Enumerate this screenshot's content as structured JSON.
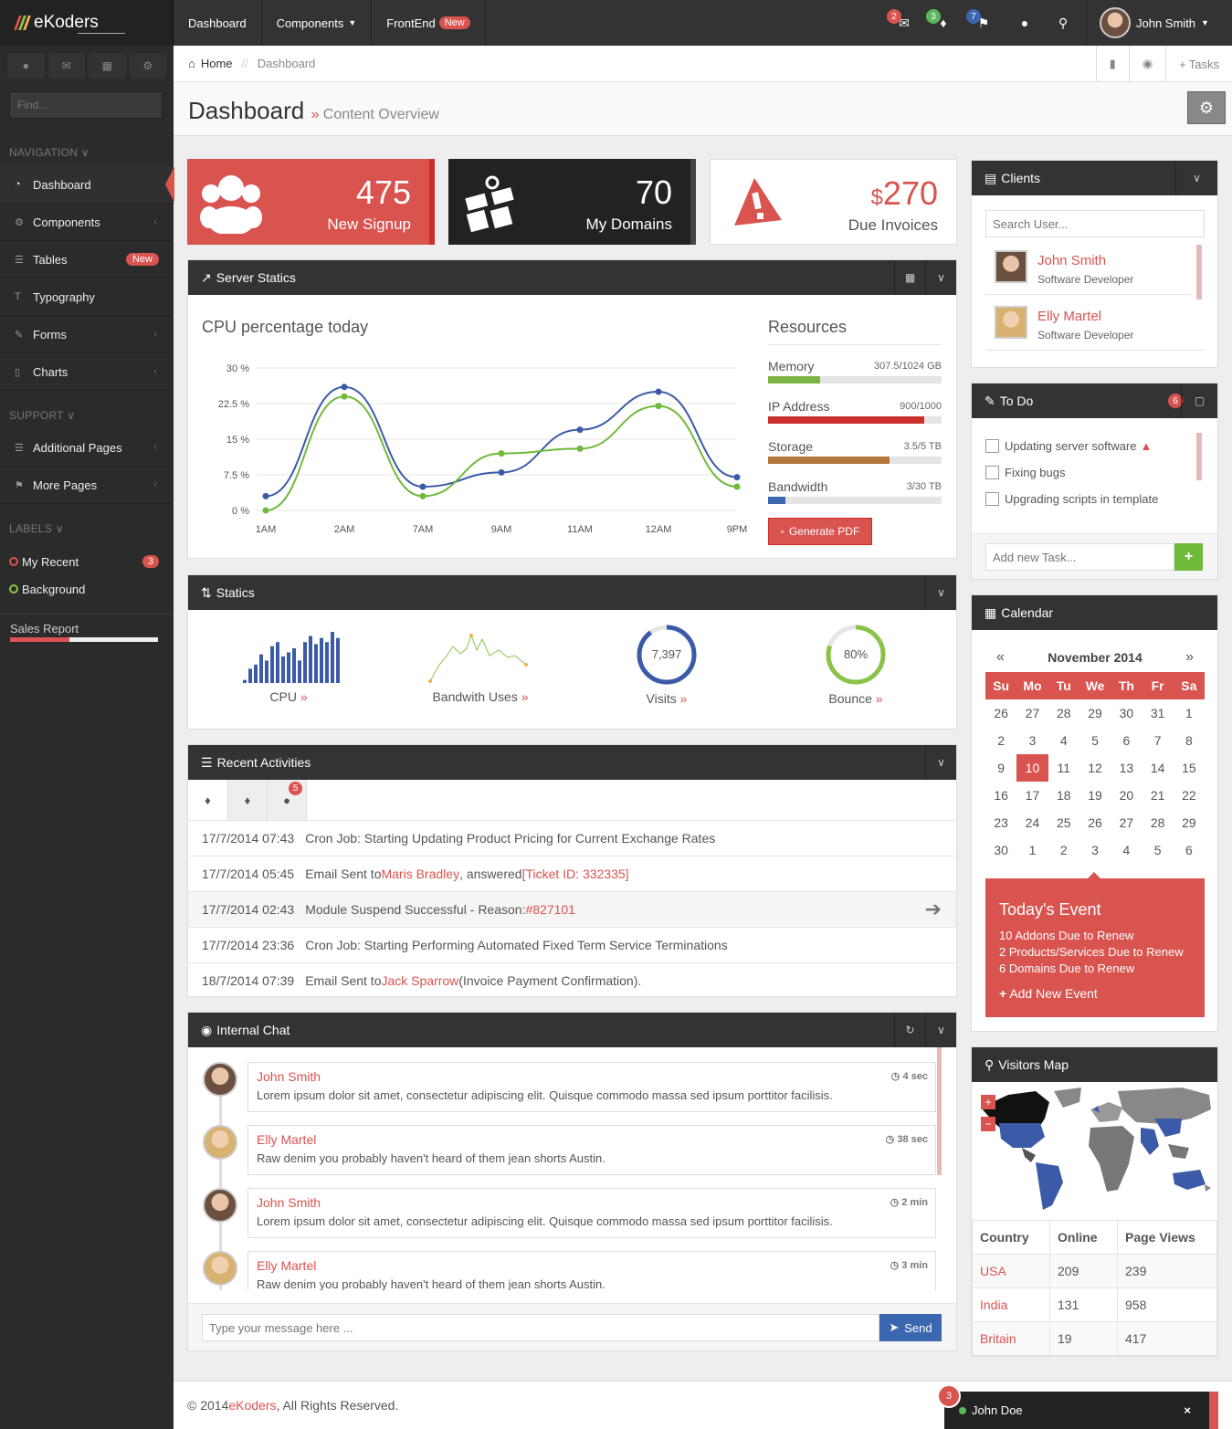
{
  "brand": "eKoders",
  "sidebar": {
    "find_placeholder": "Find...",
    "nav_head": "NAVIGATION",
    "items": [
      {
        "label": "Dashboard"
      },
      {
        "label": "Components"
      },
      {
        "label": "Tables",
        "badge": "New"
      },
      {
        "label": "Typography"
      },
      {
        "label": "Forms"
      },
      {
        "label": "Charts"
      }
    ],
    "support_head": "SUPPORT",
    "support_items": [
      {
        "label": "Additional Pages"
      },
      {
        "label": "More Pages"
      }
    ],
    "labels_head": "LABELS",
    "labels": [
      {
        "label": "My Recent",
        "badge": "3",
        "color": "#d9534f"
      },
      {
        "label": "Background",
        "color": "#8bc34a"
      }
    ],
    "sales_report": "Sales Report"
  },
  "topbar": {
    "nav": [
      {
        "label": "Dashboard"
      },
      {
        "label": "Components"
      },
      {
        "label": "FrontEnd",
        "badge": "New"
      }
    ],
    "mail_count": "2",
    "alert_count": "3",
    "flag_count": "7",
    "user": "John Smith"
  },
  "breadcrumb": {
    "home": "Home",
    "current": "Dashboard",
    "tasks": "Tasks"
  },
  "page": {
    "title": "Dashboard",
    "subtitle": "Content Overview"
  },
  "stats": [
    {
      "value": "475",
      "label": "New Signup"
    },
    {
      "value": "70",
      "label": "My Domains"
    },
    {
      "currency": "$",
      "value": "270",
      "label": "Due Invoices"
    }
  ],
  "server_panel": {
    "title": "Server Statics",
    "chart_title": "CPU percentage today",
    "resources_title": "Resources",
    "pdf_button": "Generate PDF"
  },
  "resources": [
    {
      "name": "Memory",
      "value": "307.5/1024 GB",
      "fill": 0.3,
      "color": "#7cb342"
    },
    {
      "name": "IP Address",
      "value": "900/1000",
      "fill": 0.9,
      "color": "#c9302c"
    },
    {
      "name": "Storage",
      "value": "3.5/5 TB",
      "fill": 0.7,
      "color": "#b5763a"
    },
    {
      "name": "Bandwidth",
      "value": "3/30 TB",
      "fill": 0.1,
      "color": "#3b66b0"
    }
  ],
  "chart_data": {
    "type": "line",
    "title": "CPU percentage today",
    "categories": [
      "1AM",
      "2AM",
      "7AM",
      "9AM",
      "11AM",
      "12AM",
      "9PM"
    ],
    "ylim": [
      0,
      30
    ],
    "yticks": [
      "30 %",
      "22.5 %",
      "15 %",
      "7.5 %",
      "0 %"
    ],
    "series": [
      {
        "color": "#3b5ba9",
        "values": [
          3,
          26,
          5,
          8,
          17,
          25,
          7
        ]
      },
      {
        "color": "#6fb93b",
        "values": [
          0,
          24,
          3,
          12,
          13,
          22,
          5
        ]
      }
    ]
  },
  "statics": {
    "title": "Statics",
    "items": [
      {
        "label": "CPU"
      },
      {
        "label": "Bandwith Uses"
      },
      {
        "label": "Visits",
        "value": "7,397"
      },
      {
        "label": "Bounce",
        "value": "80%"
      }
    ],
    "cpu_bars": [
      3,
      14,
      18,
      28,
      22,
      36,
      40,
      26,
      30,
      34,
      22,
      40,
      46,
      38,
      44,
      40,
      50,
      44
    ],
    "bounce_percent": 80,
    "visits_fill": 0.9
  },
  "activities": {
    "title": "Recent Activities",
    "tab_badge": "5",
    "rows": [
      {
        "time": "17/7/2014 07:43",
        "text": "Cron Job: Starting Updating Product Pricing for Current Exchange Rates"
      },
      {
        "time": "17/7/2014 05:45",
        "pre": "Email Sent to ",
        "link1": "Maris Bradley",
        "mid": ", answered ",
        "link2": "[Ticket ID: 332335]"
      },
      {
        "time": "17/7/2014 02:43",
        "pre": "Module Suspend Successful - Reason: ",
        "link1": "#827101"
      },
      {
        "time": "17/7/2014 23:36",
        "text": "Cron Job: Starting Performing Automated Fixed Term Service Terminations"
      },
      {
        "time": "18/7/2014 07:39",
        "pre": "Email Sent to ",
        "link1": "Jack Sparrow",
        "post": " (Invoice Payment Confirmation)."
      }
    ]
  },
  "chat": {
    "title": "Internal Chat",
    "messages": [
      {
        "name": "John Smith",
        "time": "4 sec",
        "text": "Lorem ipsum dolor sit amet, consectetur adipiscing elit. Quisque commodo massa sed ipsum porttitor facilisis."
      },
      {
        "name": "Elly Martel",
        "time": "38 sec",
        "text": "Raw denim you probably haven't heard of them jean shorts Austin."
      },
      {
        "name": "John Smith",
        "time": "2 min",
        "text": "Lorem ipsum dolor sit amet, consectetur adipiscing elit. Quisque commodo massa sed ipsum porttitor facilisis."
      },
      {
        "name": "Elly Martel",
        "time": "3 min",
        "text": "Raw denim you probably haven't heard of them jean shorts Austin."
      }
    ],
    "placeholder": "Type your message here ...",
    "send": "Send"
  },
  "clients": {
    "title": "Clients",
    "search_placeholder": "Search User...",
    "list": [
      {
        "name": "John Smith",
        "role": "Software Developer"
      },
      {
        "name": "Elly Martel",
        "role": "Software Developer"
      }
    ]
  },
  "todo": {
    "title": "To Do",
    "count": "6",
    "items": [
      "Updating server software",
      "Fixing bugs",
      "Upgrading scripts in template"
    ],
    "placeholder": "Add new Task..."
  },
  "calendar": {
    "title": "Calendar",
    "month": "November 2014",
    "days": [
      "Su",
      "Mo",
      "Tu",
      "We",
      "Th",
      "Fr",
      "Sa"
    ],
    "weeks": [
      [
        "26",
        "27",
        "28",
        "29",
        "30",
        "31",
        "1"
      ],
      [
        "2",
        "3",
        "4",
        "5",
        "6",
        "7",
        "8"
      ],
      [
        "9",
        "10",
        "11",
        "12",
        "13",
        "14",
        "15"
      ],
      [
        "16",
        "17",
        "18",
        "19",
        "20",
        "21",
        "22"
      ],
      [
        "23",
        "24",
        "25",
        "26",
        "27",
        "28",
        "29"
      ],
      [
        "30",
        "1",
        "2",
        "3",
        "4",
        "5",
        "6"
      ]
    ],
    "today": "10",
    "event_title": "Today's Event",
    "events": [
      "10 Addons Due to Renew",
      "2 Products/Services Due to Renew",
      "6 Domains Due to Renew"
    ],
    "add_event": "Add New Event"
  },
  "visitors": {
    "title": "Visitors Map",
    "headers": [
      "Country",
      "Online",
      "Page Views"
    ],
    "rows": [
      [
        "USA",
        "209",
        "239"
      ],
      [
        "India",
        "131",
        "958"
      ],
      [
        "Britain",
        "19",
        "417"
      ]
    ]
  },
  "footer": {
    "pre": "© 2014 ",
    "brand": "eKoders",
    "post": ", All Rights Reserved."
  },
  "chatpop": {
    "name": "John Doe",
    "count": "3"
  }
}
